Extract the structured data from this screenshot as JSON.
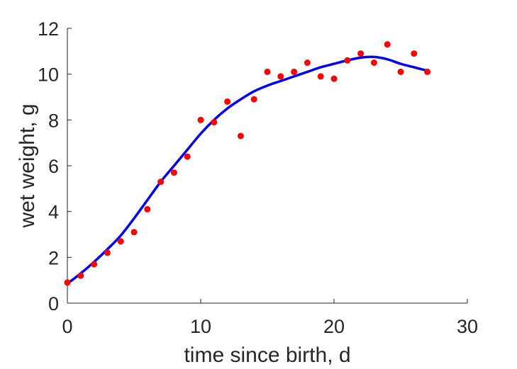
{
  "chart_data": {
    "type": "scatter",
    "xlabel": "time since birth, d",
    "ylabel": "wet weight, g",
    "xlim": [
      0,
      30
    ],
    "ylim": [
      0,
      12
    ],
    "xticks": [
      0,
      10,
      20,
      30
    ],
    "yticks": [
      0,
      2,
      4,
      6,
      8,
      10,
      12
    ],
    "grid": false,
    "series": [
      {
        "kind": "points",
        "color": "#ff0000",
        "x": [
          0,
          1,
          2,
          3,
          4,
          5,
          6,
          7,
          8,
          9,
          10,
          11,
          12,
          13,
          14,
          15,
          16,
          17,
          18,
          19,
          20,
          21,
          22,
          23,
          24,
          25,
          26,
          27
        ],
        "y": [
          0.9,
          1.2,
          1.7,
          2.2,
          2.7,
          3.1,
          4.1,
          5.3,
          5.7,
          6.4,
          8.0,
          7.9,
          8.8,
          7.3,
          8.9,
          10.1,
          9.9,
          10.1,
          10.5,
          9.9,
          9.8,
          10.6,
          10.9,
          10.5,
          11.3,
          10.1,
          10.9,
          10.1
        ]
      },
      {
        "kind": "line",
        "color": "#0000ff",
        "x": [
          0,
          1,
          2,
          3,
          4,
          5,
          6,
          7,
          8,
          9,
          10,
          11,
          12,
          13,
          14,
          15,
          16,
          17,
          18,
          19,
          20,
          21,
          22,
          23,
          24,
          25,
          26,
          27
        ],
        "y": [
          0.85,
          1.3,
          1.8,
          2.35,
          2.95,
          3.7,
          4.5,
          5.3,
          6.0,
          6.7,
          7.4,
          8.0,
          8.5,
          8.9,
          9.25,
          9.5,
          9.7,
          9.9,
          10.1,
          10.3,
          10.45,
          10.6,
          10.72,
          10.75,
          10.65,
          10.45,
          10.3,
          10.15
        ]
      }
    ]
  }
}
